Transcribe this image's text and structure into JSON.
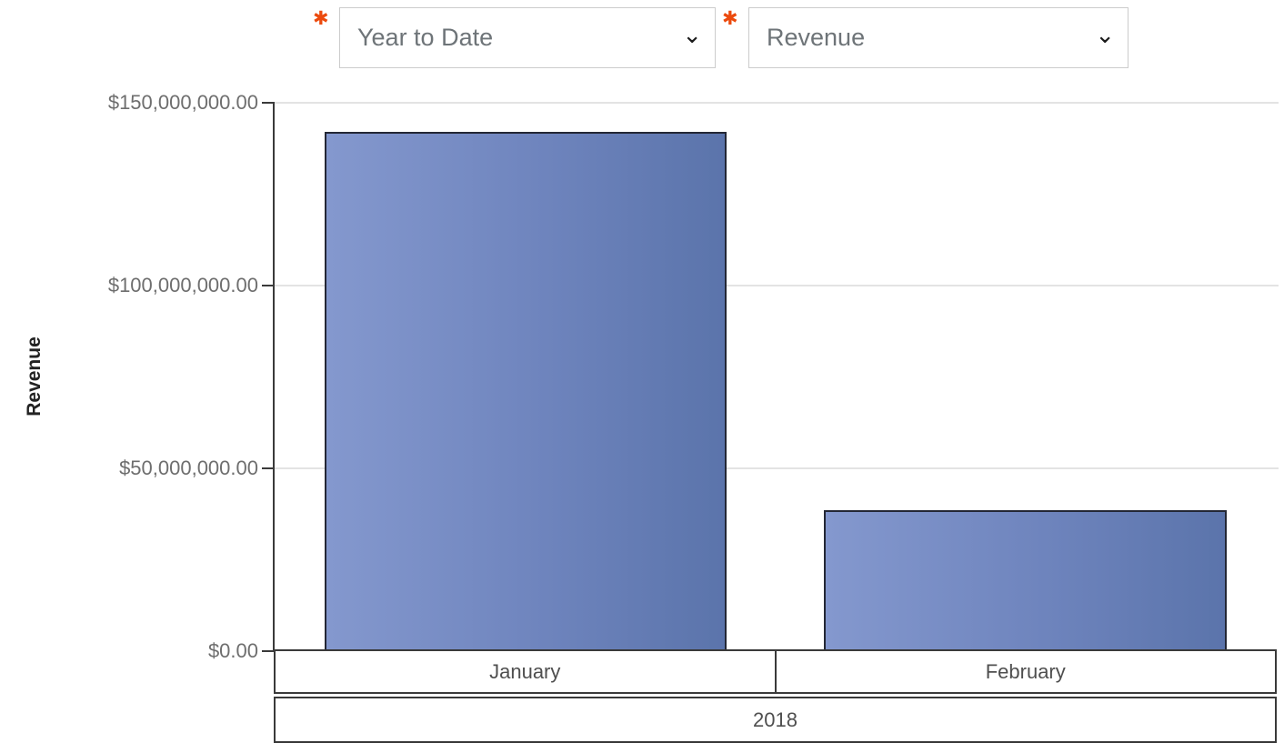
{
  "controls": {
    "required_marker": "✱",
    "required_marker_color": "#ec4a0d",
    "chevron_glyph": "⌄",
    "period_dropdown": {
      "value": "Year to Date"
    },
    "metric_dropdown": {
      "value": "Revenue"
    }
  },
  "chart_data": {
    "type": "bar",
    "title": "",
    "ylabel": "Revenue",
    "xlabel": "",
    "categories": [
      "January",
      "February"
    ],
    "series": [
      {
        "name": "Revenue",
        "values": [
          142000000,
          38500000
        ]
      }
    ],
    "group_label": "2018",
    "ylim": [
      0,
      150000000
    ],
    "y_ticks": [
      {
        "value": 150000000,
        "label": "$150,000,000.00"
      },
      {
        "value": 100000000,
        "label": "$100,000,000.00"
      },
      {
        "value": 50000000,
        "label": "$50,000,000.00"
      },
      {
        "value": 0,
        "label": "$0.00"
      }
    ],
    "grid": "horizontal-light",
    "legend_position": "none",
    "bar_fill_gradient": [
      "#8498ce",
      "#5b74ab"
    ],
    "bar_border_color": "#232735",
    "axis_color": "#3a3a3a",
    "gridline_color": "#e3e3e3"
  }
}
